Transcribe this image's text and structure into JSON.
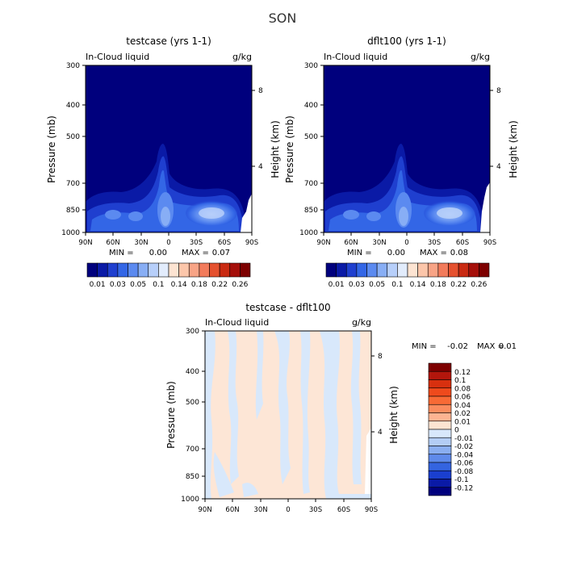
{
  "page_title": "SON",
  "colors": {
    "bg_navy": "#00007d",
    "no_data": "#ffffff",
    "diff_base": "#fde6d6",
    "diff_neg": "#d8e8fb"
  },
  "chart_data": [
    {
      "type": "heatmap",
      "title": "testcase (yrs 1-1)",
      "field_label": "In-Cloud liquid",
      "units": "g/kg",
      "ylabel": "Pressure (mb)",
      "ylabel_right": "Height (km)",
      "x_ticks": [
        "90N",
        "60N",
        "30N",
        "0",
        "30S",
        "60S",
        "90S"
      ],
      "y_ticks": [
        "300",
        "400",
        "500",
        "700",
        "850",
        "1000"
      ],
      "y_ticks_right": [
        "8",
        "4"
      ],
      "min_label": "MIN =",
      "min_value": "0.00",
      "max_label": "MAX =",
      "max_value": "0.07",
      "colorbar_labels": [
        "0.01",
        "0.03",
        "0.05",
        "0.1",
        "0.14",
        "0.18",
        "0.22",
        "0.26"
      ],
      "colorbar_colors": [
        "#00007d",
        "#0a1aa6",
        "#1f3fcf",
        "#3366e6",
        "#5b8af0",
        "#88aef5",
        "#b7cffa",
        "#e2ecfc",
        "#fde4d2",
        "#fcc6aa",
        "#f8a486",
        "#f27b5b",
        "#e5512f",
        "#c92a12",
        "#a50f0a",
        "#7d0000"
      ],
      "xlim": [
        90,
        -90
      ],
      "ylim": [
        1000,
        300
      ],
      "max_location": "near 45S, 850 mb"
    },
    {
      "type": "heatmap",
      "title": "dflt100 (yrs 1-1)",
      "field_label": "In-Cloud liquid",
      "units": "g/kg",
      "ylabel": "Pressure (mb)",
      "ylabel_right": "Height (km)",
      "x_ticks": [
        "90N",
        "60N",
        "30N",
        "0",
        "30S",
        "60S",
        "90S"
      ],
      "y_ticks": [
        "300",
        "400",
        "500",
        "700",
        "850",
        "1000"
      ],
      "y_ticks_right": [
        "8",
        "4"
      ],
      "min_label": "MIN =",
      "min_value": "0.00",
      "max_label": "MAX =",
      "max_value": "0.08",
      "colorbar_labels": [
        "0.01",
        "0.03",
        "0.05",
        "0.1",
        "0.14",
        "0.18",
        "0.22",
        "0.26"
      ],
      "colorbar_colors": [
        "#00007d",
        "#0a1aa6",
        "#1f3fcf",
        "#3366e6",
        "#5b8af0",
        "#88aef5",
        "#b7cffa",
        "#e2ecfc",
        "#fde4d2",
        "#fcc6aa",
        "#f8a486",
        "#f27b5b",
        "#e5512f",
        "#c92a12",
        "#a50f0a",
        "#7d0000"
      ],
      "xlim": [
        90,
        -90
      ],
      "ylim": [
        1000,
        300
      ]
    },
    {
      "type": "heatmap",
      "title": "testcase - dflt100",
      "field_label": "In-Cloud liquid",
      "units": "g/kg",
      "ylabel": "Pressure (mb)",
      "ylabel_right": "Height (km)",
      "x_ticks": [
        "90N",
        "60N",
        "30N",
        "0",
        "30S",
        "60S",
        "90S"
      ],
      "y_ticks": [
        "300",
        "400",
        "500",
        "700",
        "850",
        "1000"
      ],
      "y_ticks_right": [
        "8",
        "4"
      ],
      "min_label": "MIN =",
      "min_value": "-0.02",
      "max_label": "MAX =",
      "max_value": "0.01",
      "colorbar_labels": [
        "0.12",
        "0.1",
        "0.08",
        "0.06",
        "0.04",
        "0.02",
        "0.01",
        "0",
        "-0.01",
        "-0.02",
        "-0.04",
        "-0.06",
        "-0.08",
        "-0.1",
        "-0.12"
      ],
      "colorbar_colors": [
        "#7d0000",
        "#b3160c",
        "#d8300f",
        "#ef4a1c",
        "#f86a35",
        "#fb8c5e",
        "#fdb492",
        "#fde4d2",
        "#d8e8fb",
        "#b3cdf5",
        "#8aaef0",
        "#5f8aea",
        "#3464e0",
        "#1a3fcf",
        "#0a1aa6",
        "#00007d"
      ],
      "xlim": [
        90,
        -90
      ],
      "ylim": [
        1000,
        300
      ]
    }
  ]
}
